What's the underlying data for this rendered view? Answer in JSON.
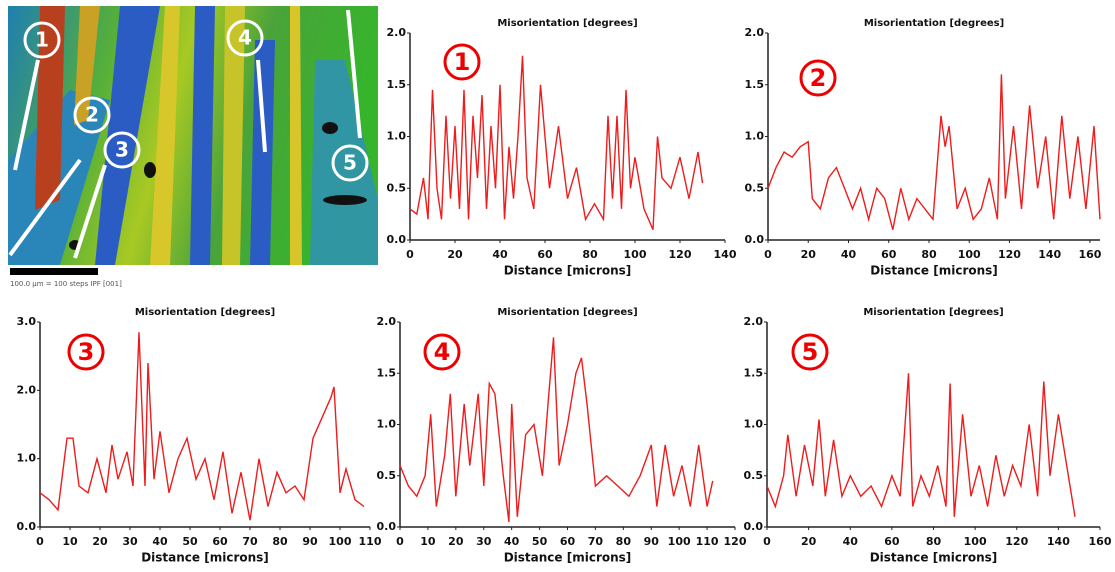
{
  "map": {
    "labels": [
      "1",
      "2",
      "3",
      "4",
      "5"
    ],
    "scale_label": "100.0 µm = 100 steps  IPF [001]"
  },
  "chart_data": [
    {
      "type": "line",
      "title": "Misorientation [degrees]",
      "annotation": "1",
      "xlabel": "Distance [microns]",
      "color": "#ee1c1c",
      "x": [
        0,
        3,
        6,
        8,
        10,
        12,
        14,
        16,
        18,
        20,
        22,
        24,
        26,
        28,
        30,
        32,
        34,
        36,
        38,
        40,
        42,
        44,
        46,
        48,
        50,
        52,
        55,
        58,
        62,
        66,
        70,
        74,
        78,
        82,
        86,
        88,
        90,
        92,
        94,
        96,
        98,
        100,
        104,
        108,
        110,
        112,
        116,
        120,
        124,
        128,
        130
      ],
      "values": [
        0.3,
        0.25,
        0.6,
        0.2,
        1.45,
        0.5,
        0.2,
        1.2,
        0.4,
        1.1,
        0.3,
        1.45,
        0.2,
        1.2,
        0.6,
        1.4,
        0.3,
        1.1,
        0.5,
        1.5,
        0.2,
        0.9,
        0.4,
        1.0,
        1.78,
        0.6,
        0.3,
        1.5,
        0.5,
        1.1,
        0.4,
        0.7,
        0.2,
        0.35,
        0.2,
        1.2,
        0.4,
        1.2,
        0.3,
        1.45,
        0.5,
        0.8,
        0.3,
        0.1,
        1.0,
        0.6,
        0.5,
        0.8,
        0.4,
        0.85,
        0.55
      ],
      "xlim": [
        0,
        140
      ],
      "ylim": [
        0,
        2
      ],
      "xticks": [
        0,
        20,
        40,
        60,
        80,
        100,
        120,
        140
      ],
      "yticks": [
        {
          "value": 0,
          "label": "0.0"
        },
        {
          "value": 0.5,
          "label": "0.5"
        },
        {
          "value": 1,
          "label": "1.0"
        },
        {
          "value": 1.5,
          "label": "1.5"
        },
        {
          "value": 2,
          "label": "2.0"
        }
      ]
    },
    {
      "type": "line",
      "title": "Misorientation [degrees]",
      "annotation": "2",
      "xlabel": "Distance [microns]",
      "color": "#ee1c1c",
      "x": [
        0,
        4,
        8,
        12,
        16,
        20,
        22,
        26,
        30,
        34,
        38,
        42,
        46,
        50,
        54,
        58,
        62,
        66,
        70,
        74,
        78,
        82,
        86,
        88,
        90,
        94,
        98,
        102,
        106,
        110,
        114,
        116,
        118,
        122,
        126,
        130,
        134,
        138,
        142,
        146,
        150,
        154,
        158,
        162,
        165
      ],
      "values": [
        0.5,
        0.7,
        0.85,
        0.8,
        0.9,
        0.95,
        0.4,
        0.3,
        0.6,
        0.7,
        0.5,
        0.3,
        0.5,
        0.2,
        0.5,
        0.4,
        0.1,
        0.5,
        0.2,
        0.4,
        0.3,
        0.2,
        1.2,
        0.9,
        1.1,
        0.3,
        0.5,
        0.2,
        0.3,
        0.6,
        0.2,
        1.6,
        0.4,
        1.1,
        0.3,
        1.3,
        0.5,
        1.0,
        0.2,
        1.2,
        0.4,
        1.0,
        0.3,
        1.1,
        0.2
      ],
      "xlim": [
        0,
        165
      ],
      "ylim": [
        0,
        2
      ],
      "xticks": [
        0,
        20,
        40,
        60,
        80,
        100,
        120,
        140,
        160
      ],
      "yticks": [
        {
          "value": 0,
          "label": "0.0"
        },
        {
          "value": 0.5,
          "label": "0.5"
        },
        {
          "value": 1,
          "label": "1.0"
        },
        {
          "value": 1.5,
          "label": "1.5"
        },
        {
          "value": 2,
          "label": "2.0"
        }
      ]
    },
    {
      "type": "line",
      "title": "Misorientation [degrees]",
      "annotation": "3",
      "xlabel": "Distance [microns]",
      "color": "#ee1c1c",
      "x": [
        0,
        3,
        6,
        9,
        11,
        13,
        16,
        19,
        22,
        24,
        26,
        29,
        31,
        33,
        35,
        36,
        38,
        40,
        43,
        46,
        49,
        52,
        55,
        58,
        61,
        64,
        67,
        70,
        73,
        76,
        79,
        82,
        85,
        88,
        91,
        94,
        97,
        98,
        100,
        102,
        105,
        108
      ],
      "values": [
        0.5,
        0.4,
        0.25,
        1.3,
        1.3,
        0.6,
        0.5,
        1.0,
        0.5,
        1.2,
        0.7,
        1.1,
        0.6,
        2.85,
        0.6,
        2.4,
        0.7,
        1.4,
        0.5,
        1.0,
        1.3,
        0.7,
        1.0,
        0.4,
        1.1,
        0.2,
        0.8,
        0.1,
        1.0,
        0.3,
        0.8,
        0.5,
        0.6,
        0.4,
        1.3,
        1.6,
        1.9,
        2.05,
        0.5,
        0.85,
        0.4,
        0.3
      ],
      "xlim": [
        0,
        110
      ],
      "ylim": [
        0,
        3
      ],
      "xticks": [
        0,
        10,
        20,
        30,
        40,
        50,
        60,
        70,
        80,
        90,
        100,
        110
      ],
      "yticks": [
        {
          "value": 0,
          "label": "0.0"
        },
        {
          "value": 1,
          "label": "1.0"
        },
        {
          "value": 2,
          "label": "2.0"
        },
        {
          "value": 3,
          "label": "3.0"
        }
      ]
    },
    {
      "type": "line",
      "title": "Misorientation [degrees]",
      "annotation": "4",
      "xlabel": "Distance [microns]",
      "color": "#ee1c1c",
      "x": [
        0,
        3,
        6,
        9,
        11,
        13,
        16,
        18,
        20,
        23,
        25,
        28,
        30,
        32,
        34,
        37,
        39,
        40,
        42,
        45,
        48,
        51,
        53,
        55,
        57,
        60,
        63,
        65,
        67,
        70,
        74,
        78,
        82,
        86,
        90,
        92,
        95,
        98,
        101,
        104,
        107,
        110,
        112
      ],
      "values": [
        0.6,
        0.4,
        0.3,
        0.5,
        1.1,
        0.2,
        0.7,
        1.3,
        0.3,
        1.2,
        0.6,
        1.3,
        0.4,
        1.4,
        1.3,
        0.5,
        0.05,
        1.2,
        0.1,
        0.9,
        1.0,
        0.5,
        1.2,
        1.85,
        0.6,
        1.0,
        1.5,
        1.65,
        1.2,
        0.4,
        0.5,
        0.4,
        0.3,
        0.5,
        0.8,
        0.2,
        0.8,
        0.3,
        0.6,
        0.2,
        0.8,
        0.2,
        0.45
      ],
      "xlim": [
        0,
        120
      ],
      "ylim": [
        0,
        2
      ],
      "xticks": [
        0,
        10,
        20,
        30,
        40,
        50,
        60,
        70,
        80,
        90,
        100,
        110,
        120
      ],
      "yticks": [
        {
          "value": 0,
          "label": "0.0"
        },
        {
          "value": 0.5,
          "label": "0.5"
        },
        {
          "value": 1,
          "label": "1.0"
        },
        {
          "value": 1.5,
          "label": "1.5"
        },
        {
          "value": 2,
          "label": "2.0"
        }
      ]
    },
    {
      "type": "line",
      "title": "Misorientation [degrees]",
      "annotation": "5",
      "xlabel": "Distance [microns]",
      "color": "#ee1c1c",
      "x": [
        0,
        4,
        8,
        10,
        14,
        18,
        22,
        25,
        28,
        32,
        36,
        40,
        45,
        50,
        55,
        60,
        64,
        68,
        70,
        74,
        78,
        82,
        86,
        88,
        90,
        94,
        98,
        102,
        106,
        110,
        114,
        118,
        122,
        126,
        130,
        133,
        136,
        140,
        144,
        148
      ],
      "values": [
        0.4,
        0.2,
        0.5,
        0.9,
        0.3,
        0.8,
        0.4,
        1.05,
        0.3,
        0.85,
        0.3,
        0.5,
        0.3,
        0.4,
        0.2,
        0.5,
        0.3,
        1.5,
        0.2,
        0.5,
        0.3,
        0.6,
        0.2,
        1.4,
        0.1,
        1.1,
        0.3,
        0.6,
        0.2,
        0.7,
        0.3,
        0.6,
        0.4,
        1.0,
        0.3,
        1.42,
        0.5,
        1.1,
        0.6,
        0.1
      ],
      "xlim": [
        0,
        160
      ],
      "ylim": [
        0,
        2
      ],
      "xticks": [
        0,
        20,
        40,
        60,
        80,
        100,
        120,
        140,
        160
      ],
      "yticks": [
        {
          "value": 0,
          "label": "0.0"
        },
        {
          "value": 0.5,
          "label": "0.5"
        },
        {
          "value": 1,
          "label": "1.0"
        },
        {
          "value": 1.5,
          "label": "1.5"
        },
        {
          "value": 2,
          "label": "2.0"
        }
      ]
    }
  ]
}
